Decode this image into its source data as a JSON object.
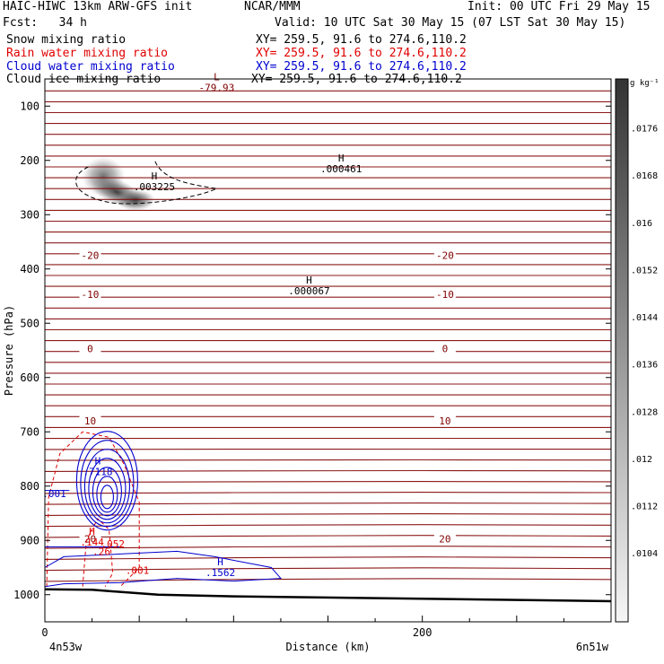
{
  "header": {
    "title": "HAIC-HIWC 13km ARW-GFS init",
    "org": "NCAR/MMM",
    "init": "Init: 00 UTC Fri 29 May 15",
    "fcst": "Fcst:   34 h",
    "valid": "Valid: 10 UTC Sat 30 May 15 (07 LST Sat 30 May 15)",
    "fields": [
      {
        "name": "Snow mixing ratio",
        "xy": "XY= 259.5, 91.6 to 274.6,110.2",
        "color": "#000000"
      },
      {
        "name": "Rain water mixing ratio",
        "xy": "XY= 259.5, 91.6 to 274.6,110.2",
        "color": "#e00000"
      },
      {
        "name": "Cloud water mixing ratio",
        "xy": "XY= 259.5, 91.6 to 274.6,110.2",
        "color": "#0000d0"
      },
      {
        "name": "Cloud ice mixing ratio",
        "xy": "XY= 259.5, 91.6 to 274.6,110.2",
        "color": "#000000"
      }
    ]
  },
  "chart_data": {
    "type": "cross-section",
    "ylabel": "Pressure (hPa)",
    "xlabel": "Distance (km)",
    "x_ticks": [
      0,
      200
    ],
    "x_range": [
      0,
      300
    ],
    "y_ticks": [
      100,
      200,
      300,
      400,
      500,
      600,
      700,
      800,
      900,
      1000
    ],
    "y_range": [
      1050,
      50
    ],
    "left_point": "4n53w",
    "right_point": "6n51w",
    "colorbar": {
      "unit": "g kg⁻¹",
      "labels": [
        ".0176",
        ".0168",
        ".016",
        ".0152",
        ".0144",
        ".0136",
        ".0128",
        ".012",
        ".0112",
        ".0104"
      ]
    },
    "temperature_contours": [
      {
        "label": "-20",
        "p": 375
      },
      {
        "label": "-10",
        "p": 447
      },
      {
        "label": "0",
        "p": 547
      },
      {
        "label": "10",
        "p": 680
      },
      {
        "label": "20",
        "p": 897
      }
    ],
    "annotations": [
      {
        "marker": "L",
        "value": "-79.93",
        "x": 91,
        "p": 66,
        "color": "#800000"
      },
      {
        "marker": "H",
        "value": ".003225",
        "x": 58,
        "p": 248,
        "color": "#000000"
      },
      {
        "marker": "H",
        "value": ".000461",
        "x": 157,
        "p": 215,
        "color": "#000000"
      },
      {
        "marker": "H",
        "value": ".000067",
        "x": 140,
        "p": 440,
        "color": "#000000"
      },
      {
        "marker": "H",
        "value": ".7118",
        "x": 28,
        "p": 773,
        "color": "#0000d0"
      },
      {
        "marker": "",
        "value": ".001",
        "x": 5,
        "p": 814,
        "color": "#0000d0"
      },
      {
        "marker": "H",
        "value": ".144",
        "x": 25,
        "p": 903,
        "color": "#e00000"
      },
      {
        "marker": "",
        "value": ".052",
        "x": 36,
        "p": 906,
        "color": "#e00000"
      },
      {
        "marker": "",
        "value": ".26",
        "x": 30,
        "p": 920,
        "color": "#e00000"
      },
      {
        "marker": "",
        "value": ".001",
        "x": 49,
        "p": 955,
        "color": "#e00000"
      },
      {
        "marker": "H",
        "value": ".1562",
        "x": 93,
        "p": 959,
        "color": "#0000d0"
      }
    ]
  }
}
